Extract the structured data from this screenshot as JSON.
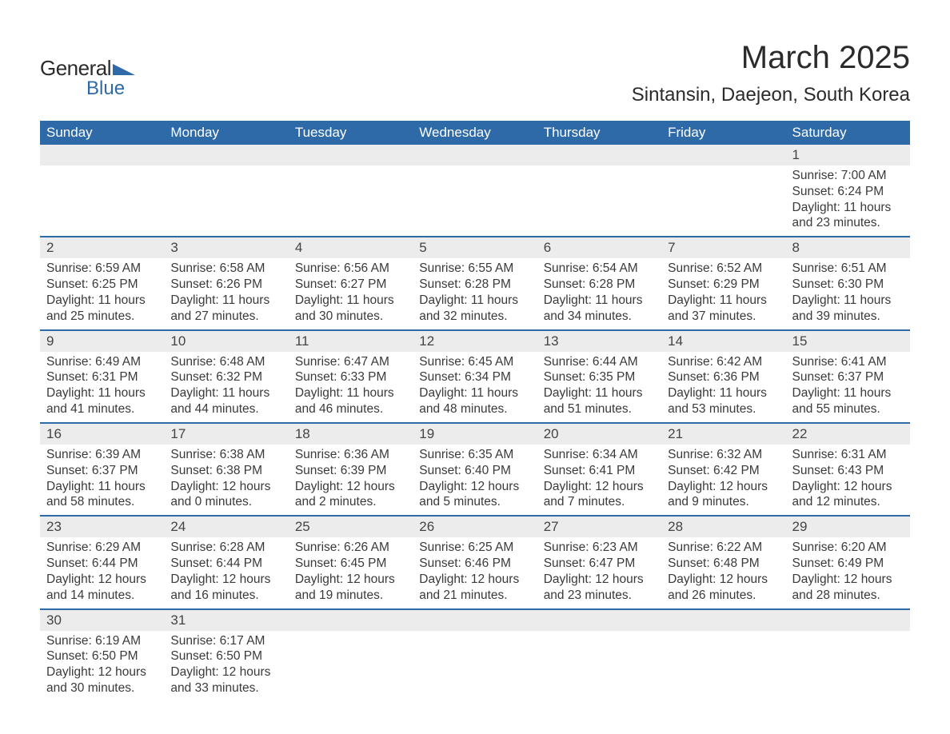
{
  "logo": {
    "line1": "General",
    "line2": "Blue"
  },
  "title": {
    "month": "March 2025",
    "location": "Sintansin, Daejeon, South Korea"
  },
  "colors": {
    "header_bg": "#2f6aa8",
    "header_text": "#ffffff",
    "daynum_bg": "#ececec",
    "row_border": "#2f6aa8",
    "body_text": "#3a3a3a",
    "page_bg": "#ffffff"
  },
  "fonts": {
    "title_size_pt": 40,
    "location_size_pt": 24,
    "header_size_pt": 17,
    "cell_size_pt": 15
  },
  "weekdays": [
    "Sunday",
    "Monday",
    "Tuesday",
    "Wednesday",
    "Thursday",
    "Friday",
    "Saturday"
  ],
  "weeks": [
    [
      null,
      null,
      null,
      null,
      null,
      null,
      {
        "day": "1",
        "sunrise": "Sunrise: 7:00 AM",
        "sunset": "Sunset: 6:24 PM",
        "daylight1": "Daylight: 11 hours",
        "daylight2": "and 23 minutes."
      }
    ],
    [
      {
        "day": "2",
        "sunrise": "Sunrise: 6:59 AM",
        "sunset": "Sunset: 6:25 PM",
        "daylight1": "Daylight: 11 hours",
        "daylight2": "and 25 minutes."
      },
      {
        "day": "3",
        "sunrise": "Sunrise: 6:58 AM",
        "sunset": "Sunset: 6:26 PM",
        "daylight1": "Daylight: 11 hours",
        "daylight2": "and 27 minutes."
      },
      {
        "day": "4",
        "sunrise": "Sunrise: 6:56 AM",
        "sunset": "Sunset: 6:27 PM",
        "daylight1": "Daylight: 11 hours",
        "daylight2": "and 30 minutes."
      },
      {
        "day": "5",
        "sunrise": "Sunrise: 6:55 AM",
        "sunset": "Sunset: 6:28 PM",
        "daylight1": "Daylight: 11 hours",
        "daylight2": "and 32 minutes."
      },
      {
        "day": "6",
        "sunrise": "Sunrise: 6:54 AM",
        "sunset": "Sunset: 6:28 PM",
        "daylight1": "Daylight: 11 hours",
        "daylight2": "and 34 minutes."
      },
      {
        "day": "7",
        "sunrise": "Sunrise: 6:52 AM",
        "sunset": "Sunset: 6:29 PM",
        "daylight1": "Daylight: 11 hours",
        "daylight2": "and 37 minutes."
      },
      {
        "day": "8",
        "sunrise": "Sunrise: 6:51 AM",
        "sunset": "Sunset: 6:30 PM",
        "daylight1": "Daylight: 11 hours",
        "daylight2": "and 39 minutes."
      }
    ],
    [
      {
        "day": "9",
        "sunrise": "Sunrise: 6:49 AM",
        "sunset": "Sunset: 6:31 PM",
        "daylight1": "Daylight: 11 hours",
        "daylight2": "and 41 minutes."
      },
      {
        "day": "10",
        "sunrise": "Sunrise: 6:48 AM",
        "sunset": "Sunset: 6:32 PM",
        "daylight1": "Daylight: 11 hours",
        "daylight2": "and 44 minutes."
      },
      {
        "day": "11",
        "sunrise": "Sunrise: 6:47 AM",
        "sunset": "Sunset: 6:33 PM",
        "daylight1": "Daylight: 11 hours",
        "daylight2": "and 46 minutes."
      },
      {
        "day": "12",
        "sunrise": "Sunrise: 6:45 AM",
        "sunset": "Sunset: 6:34 PM",
        "daylight1": "Daylight: 11 hours",
        "daylight2": "and 48 minutes."
      },
      {
        "day": "13",
        "sunrise": "Sunrise: 6:44 AM",
        "sunset": "Sunset: 6:35 PM",
        "daylight1": "Daylight: 11 hours",
        "daylight2": "and 51 minutes."
      },
      {
        "day": "14",
        "sunrise": "Sunrise: 6:42 AM",
        "sunset": "Sunset: 6:36 PM",
        "daylight1": "Daylight: 11 hours",
        "daylight2": "and 53 minutes."
      },
      {
        "day": "15",
        "sunrise": "Sunrise: 6:41 AM",
        "sunset": "Sunset: 6:37 PM",
        "daylight1": "Daylight: 11 hours",
        "daylight2": "and 55 minutes."
      }
    ],
    [
      {
        "day": "16",
        "sunrise": "Sunrise: 6:39 AM",
        "sunset": "Sunset: 6:37 PM",
        "daylight1": "Daylight: 11 hours",
        "daylight2": "and 58 minutes."
      },
      {
        "day": "17",
        "sunrise": "Sunrise: 6:38 AM",
        "sunset": "Sunset: 6:38 PM",
        "daylight1": "Daylight: 12 hours",
        "daylight2": "and 0 minutes."
      },
      {
        "day": "18",
        "sunrise": "Sunrise: 6:36 AM",
        "sunset": "Sunset: 6:39 PM",
        "daylight1": "Daylight: 12 hours",
        "daylight2": "and 2 minutes."
      },
      {
        "day": "19",
        "sunrise": "Sunrise: 6:35 AM",
        "sunset": "Sunset: 6:40 PM",
        "daylight1": "Daylight: 12 hours",
        "daylight2": "and 5 minutes."
      },
      {
        "day": "20",
        "sunrise": "Sunrise: 6:34 AM",
        "sunset": "Sunset: 6:41 PM",
        "daylight1": "Daylight: 12 hours",
        "daylight2": "and 7 minutes."
      },
      {
        "day": "21",
        "sunrise": "Sunrise: 6:32 AM",
        "sunset": "Sunset: 6:42 PM",
        "daylight1": "Daylight: 12 hours",
        "daylight2": "and 9 minutes."
      },
      {
        "day": "22",
        "sunrise": "Sunrise: 6:31 AM",
        "sunset": "Sunset: 6:43 PM",
        "daylight1": "Daylight: 12 hours",
        "daylight2": "and 12 minutes."
      }
    ],
    [
      {
        "day": "23",
        "sunrise": "Sunrise: 6:29 AM",
        "sunset": "Sunset: 6:44 PM",
        "daylight1": "Daylight: 12 hours",
        "daylight2": "and 14 minutes."
      },
      {
        "day": "24",
        "sunrise": "Sunrise: 6:28 AM",
        "sunset": "Sunset: 6:44 PM",
        "daylight1": "Daylight: 12 hours",
        "daylight2": "and 16 minutes."
      },
      {
        "day": "25",
        "sunrise": "Sunrise: 6:26 AM",
        "sunset": "Sunset: 6:45 PM",
        "daylight1": "Daylight: 12 hours",
        "daylight2": "and 19 minutes."
      },
      {
        "day": "26",
        "sunrise": "Sunrise: 6:25 AM",
        "sunset": "Sunset: 6:46 PM",
        "daylight1": "Daylight: 12 hours",
        "daylight2": "and 21 minutes."
      },
      {
        "day": "27",
        "sunrise": "Sunrise: 6:23 AM",
        "sunset": "Sunset: 6:47 PM",
        "daylight1": "Daylight: 12 hours",
        "daylight2": "and 23 minutes."
      },
      {
        "day": "28",
        "sunrise": "Sunrise: 6:22 AM",
        "sunset": "Sunset: 6:48 PM",
        "daylight1": "Daylight: 12 hours",
        "daylight2": "and 26 minutes."
      },
      {
        "day": "29",
        "sunrise": "Sunrise: 6:20 AM",
        "sunset": "Sunset: 6:49 PM",
        "daylight1": "Daylight: 12 hours",
        "daylight2": "and 28 minutes."
      }
    ],
    [
      {
        "day": "30",
        "sunrise": "Sunrise: 6:19 AM",
        "sunset": "Sunset: 6:50 PM",
        "daylight1": "Daylight: 12 hours",
        "daylight2": "and 30 minutes."
      },
      {
        "day": "31",
        "sunrise": "Sunrise: 6:17 AM",
        "sunset": "Sunset: 6:50 PM",
        "daylight1": "Daylight: 12 hours",
        "daylight2": "and 33 minutes."
      },
      null,
      null,
      null,
      null,
      null
    ]
  ]
}
